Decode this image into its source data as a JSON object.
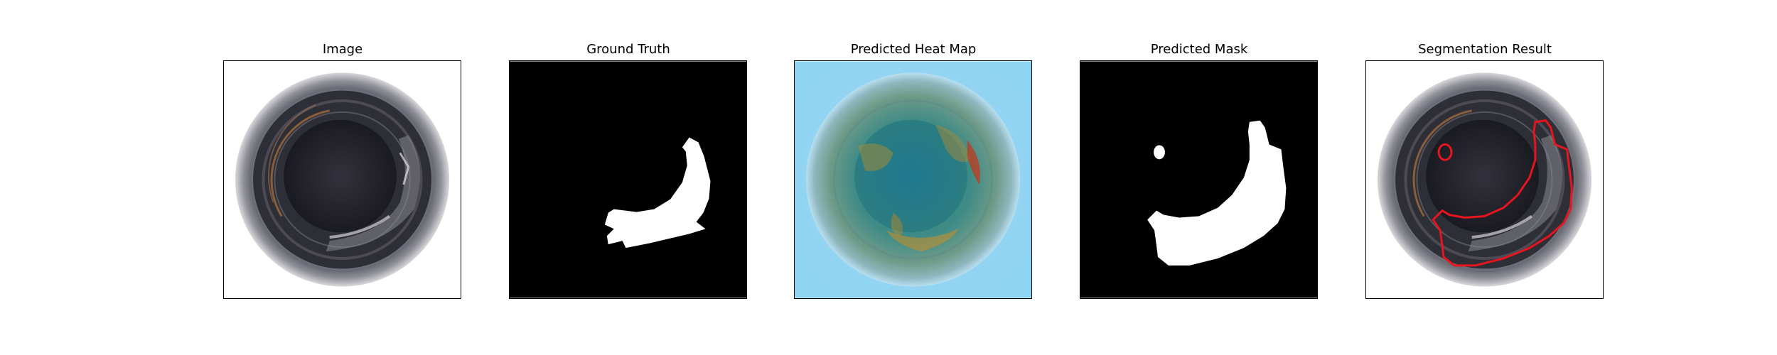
{
  "panels": [
    {
      "title": "Image"
    },
    {
      "title": "Ground Truth"
    },
    {
      "title": "Predicted Heat Map"
    },
    {
      "title": "Predicted Mask"
    },
    {
      "title": "Segmentation Result"
    }
  ],
  "colors": {
    "mask_foreground": "#ffffff",
    "mask_background": "#000000",
    "contour": "#e8141e",
    "heat_low": "#8fd4f3",
    "heat_high": "#c23a1c"
  }
}
